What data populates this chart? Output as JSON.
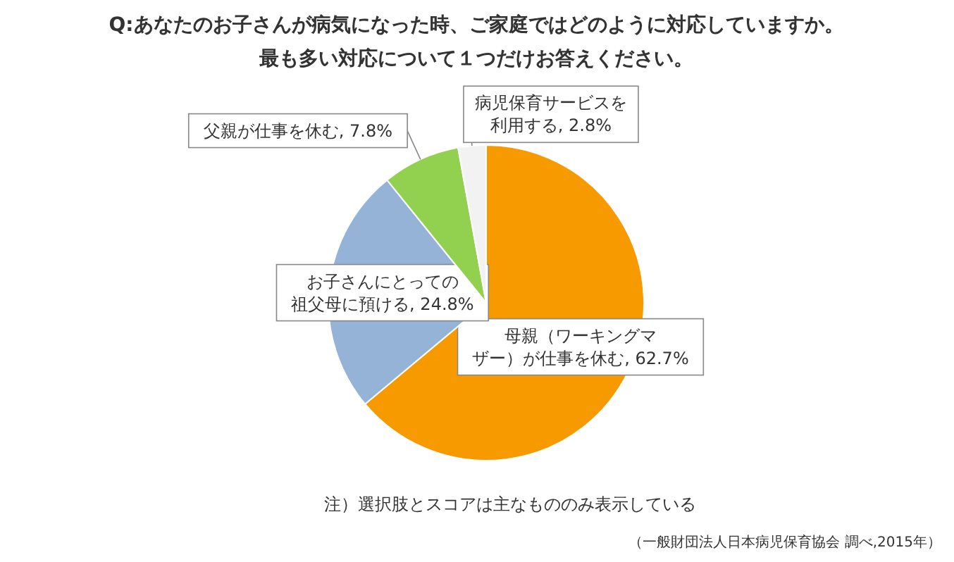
{
  "chart_data": {
    "type": "pie",
    "title": "Q:あなたのお子さんが病気になった時、ご家庭ではどのように対応していますか。",
    "subtitle": "最も多い対応について１つだけお答えください。",
    "categories": [
      "母親（ワーキングマザー）が仕事を休む",
      "お子さんにとっての祖父母に預ける",
      "父親が仕事を休む",
      "病児保育サービスを利用する"
    ],
    "values": [
      62.7,
      24.8,
      7.8,
      2.8
    ],
    "value_labels": [
      "62.7%",
      "24.8%",
      "7.8%",
      "2.8%"
    ],
    "colors": [
      "#f79a00",
      "#95b3d7",
      "#92d050",
      "#f2f2f2"
    ],
    "annotations": [
      "注）選択肢とスコアは主なもののみ表示している",
      "（一般財団法人日本病児保育協会 調べ,2015年）"
    ]
  }
}
